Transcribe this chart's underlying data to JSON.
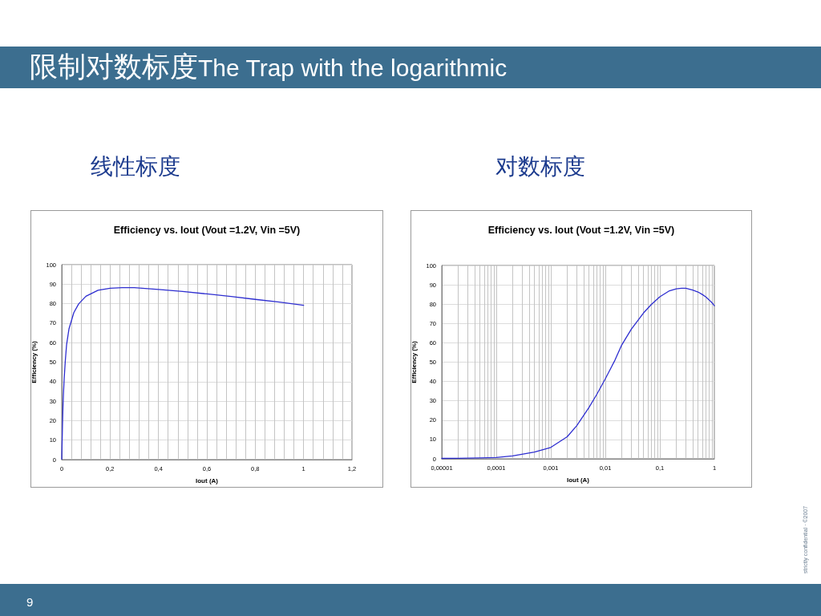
{
  "chart_data": [
    {
      "type": "line",
      "title": "Efficiency vs. Iout (Vout =1.2V, Vin =5V)",
      "subtitle": "线性标度",
      "xlabel": "Iout (A)",
      "ylabel": "Efficiency (%)",
      "annotations": [
        "限制对数标度The Trap with the logarithmic",
        "9",
        "strictly confidential · ©2007"
      ],
      "x": [
        1e-05,
        2e-05,
        5e-05,
        0.0001,
        0.0002,
        0.0005,
        0.001,
        0.002,
        0.003,
        0.005,
        0.007,
        0.01,
        0.015,
        0.02,
        0.03,
        0.05,
        0.07,
        0.1,
        0.15,
        0.2,
        0.25,
        0.3,
        0.4,
        0.5,
        0.6,
        0.7,
        0.8,
        0.9,
        1
      ],
      "series": [
        {
          "color": "#2e2ed0",
          "values": [
            0.2,
            0.3,
            0.5,
            0.7,
            1.5,
            3.5,
            5.9,
            11.4,
            17.2,
            26.5,
            33.4,
            41.4,
            51,
            58.9,
            67.1,
            75.4,
            79.9,
            83.8,
            86.9,
            87.9,
            88.2,
            88.2,
            87.3,
            86.3,
            85,
            83.7,
            82.2,
            80.8,
            79.2
          ]
        }
      ],
      "xlim": [
        0,
        1.2
      ],
      "xticks": [
        {
          "value": 0,
          "label": "0"
        },
        {
          "value": 0.04,
          "label": null
        },
        {
          "value": 0.08,
          "label": null
        },
        {
          "value": 0.12,
          "label": null
        },
        {
          "value": 0.16,
          "label": null
        },
        {
          "value": 0.2,
          "label": "0,2"
        },
        {
          "value": 0.24,
          "label": null
        },
        {
          "value": 0.28,
          "label": null
        },
        {
          "value": 0.32,
          "label": null
        },
        {
          "value": 0.36,
          "label": null
        },
        {
          "value": 0.4,
          "label": "0,4"
        },
        {
          "value": 0.44,
          "label": null
        },
        {
          "value": 0.48,
          "label": null
        },
        {
          "value": 0.52,
          "label": null
        },
        {
          "value": 0.56,
          "label": null
        },
        {
          "value": 0.6,
          "label": "0,6"
        },
        {
          "value": 0.64,
          "label": null
        },
        {
          "value": 0.68,
          "label": null
        },
        {
          "value": 0.72,
          "label": null
        },
        {
          "value": 0.76,
          "label": null
        },
        {
          "value": 0.8,
          "label": "0,8"
        },
        {
          "value": 0.84,
          "label": null
        },
        {
          "value": 0.88,
          "label": null
        },
        {
          "value": 0.92,
          "label": null
        },
        {
          "value": 0.96,
          "label": null
        },
        1,
        {
          "value": 1.04,
          "label": null
        },
        {
          "value": 1.08,
          "label": null
        },
        {
          "value": 1.12,
          "label": null
        },
        {
          "value": 1.16,
          "label": null
        },
        {
          "value": 1.2,
          "label": "1,2"
        }
      ],
      "ylim": [
        0,
        100
      ],
      "yticks": [
        {
          "value": 0,
          "label": "0"
        },
        10,
        20,
        30,
        40,
        50,
        60,
        70,
        80,
        90,
        100
      ],
      "grid": true,
      "marker": "none"
    },
    {
      "type": "line",
      "title": "Efficiency vs. Iout (Vout =1.2V, Vin =5V)",
      "subtitle": "对数标度",
      "xlabel": "Iout (A)",
      "ylabel": "Efficiency (%)",
      "x": [
        1e-05,
        2e-05,
        5e-05,
        0.0001,
        0.0002,
        0.0005,
        0.001,
        0.002,
        0.003,
        0.005,
        0.007,
        0.01,
        0.015,
        0.02,
        0.03,
        0.05,
        0.07,
        0.1,
        0.15,
        0.2,
        0.25,
        0.3,
        0.4,
        0.5,
        0.6,
        0.7,
        0.8,
        0.9,
        1
      ],
      "series": [
        {
          "color": "#2e2ed0",
          "values": [
            0.2,
            0.3,
            0.5,
            0.7,
            1.5,
            3.5,
            5.9,
            11.4,
            17.2,
            26.5,
            33.4,
            41.4,
            51,
            58.9,
            67.1,
            75.4,
            79.9,
            83.8,
            86.9,
            87.9,
            88.2,
            88.2,
            87.3,
            86.3,
            85,
            83.7,
            82.2,
            80.8,
            79.2
          ]
        }
      ],
      "log": "x",
      "xlim": [
        1e-05,
        1
      ],
      "xticks": [
        {
          "value": 1e-05,
          "label": "0,00001"
        },
        {
          "value": 2e-05,
          "label": null
        },
        {
          "value": 3e-05,
          "label": null
        },
        {
          "value": 4e-05,
          "label": null
        },
        {
          "value": 5e-05,
          "label": null
        },
        {
          "value": 6e-05,
          "label": null
        },
        {
          "value": 7e-05,
          "label": null
        },
        {
          "value": 8e-05,
          "label": null
        },
        {
          "value": 9e-05,
          "label": null
        },
        {
          "value": 0.0001,
          "label": "0,0001"
        },
        {
          "value": 0.0002,
          "label": null
        },
        {
          "value": 0.0003,
          "label": null
        },
        {
          "value": 0.0004,
          "label": null
        },
        {
          "value": 0.0005,
          "label": null
        },
        {
          "value": 0.0006,
          "label": null
        },
        {
          "value": 0.0007,
          "label": null
        },
        {
          "value": 0.0008,
          "label": null
        },
        {
          "value": 0.0009,
          "label": null
        },
        {
          "value": 0.001,
          "label": "0,001"
        },
        {
          "value": 0.002,
          "label": null
        },
        {
          "value": 0.003,
          "label": null
        },
        {
          "value": 0.004,
          "label": null
        },
        {
          "value": 0.005,
          "label": null
        },
        {
          "value": 0.006,
          "label": null
        },
        {
          "value": 0.007,
          "label": null
        },
        {
          "value": 0.008,
          "label": null
        },
        {
          "value": 0.009,
          "label": null
        },
        {
          "value": 0.01,
          "label": "0,01"
        },
        {
          "value": 0.02,
          "label": null
        },
        {
          "value": 0.03,
          "label": null
        },
        {
          "value": 0.04,
          "label": null
        },
        {
          "value": 0.05,
          "label": null
        },
        {
          "value": 0.06,
          "label": null
        },
        {
          "value": 0.07,
          "label": null
        },
        {
          "value": 0.08,
          "label": null
        },
        {
          "value": 0.09,
          "label": null
        },
        {
          "value": 0.1,
          "label": "0,1"
        },
        {
          "value": 0.2,
          "label": null
        },
        {
          "value": 0.3,
          "label": null
        },
        {
          "value": 0.4,
          "label": null
        },
        {
          "value": 0.5,
          "label": null
        },
        {
          "value": 0.6,
          "label": null
        },
        {
          "value": 0.7,
          "label": null
        },
        {
          "value": 0.8,
          "label": null
        },
        {
          "value": 0.9,
          "label": null
        },
        1
      ],
      "ylim": [
        0,
        100
      ],
      "yticks": [
        {
          "value": 0,
          "label": "0"
        },
        10,
        20,
        30,
        40,
        50,
        60,
        70,
        80,
        90,
        100
      ],
      "grid": true,
      "marker": "none"
    }
  ]
}
